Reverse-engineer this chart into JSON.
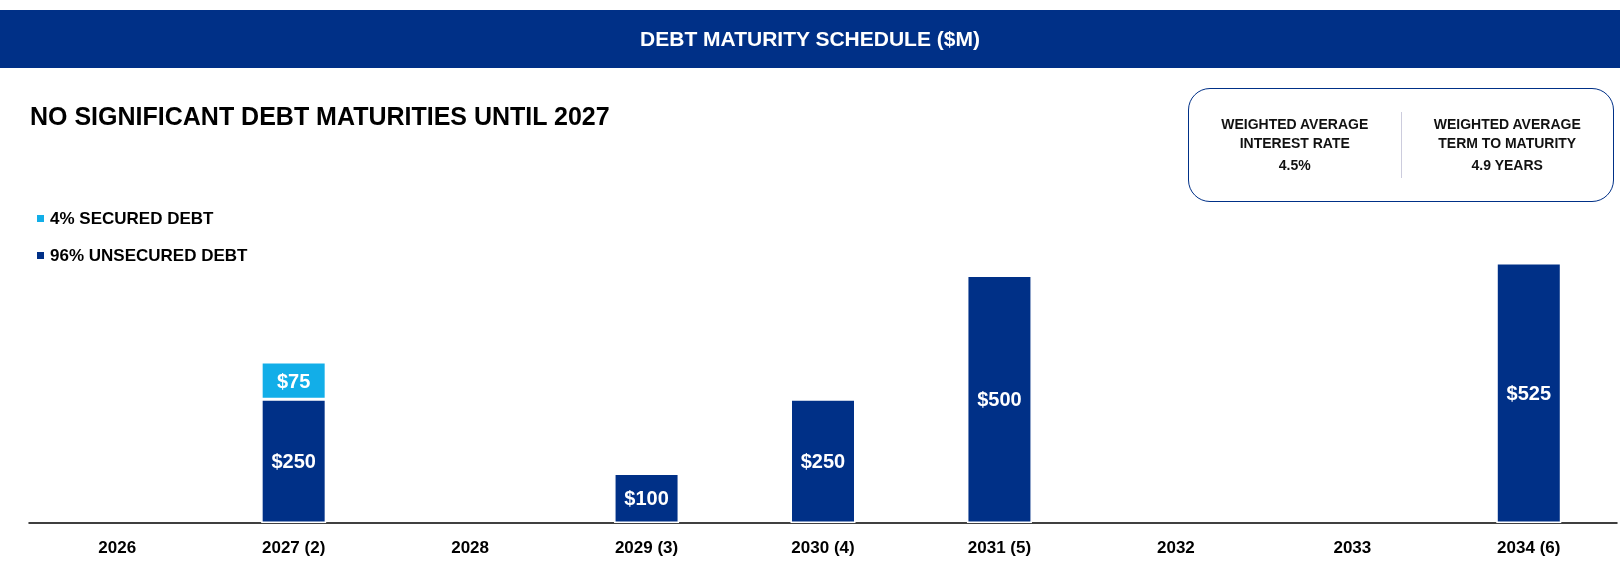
{
  "chart_data": {
    "type": "bar",
    "title": "DEBT MATURITY SCHEDULE ($M)",
    "subtitle": "NO SIGNIFICANT DEBT MATURITIES UNTIL 2027",
    "annotations": [
      "WEIGHTED AVERAGE INTEREST RATE",
      "4.5%",
      "WEIGHTED AVERAGE TERM TO MATURITY",
      "4.9 YEARS"
    ],
    "categories": [
      "2026",
      "2027 (2)",
      "2028",
      "2029 (3)",
      "2030 (4)",
      "2031 (5)",
      "2032",
      "2033",
      "2034 (6)"
    ],
    "stacked": true,
    "legend": "top left",
    "series": [
      {
        "name": "96% UNSECURED DEBT",
        "color": "#003087",
        "values": [
          null,
          250,
          null,
          100,
          250,
          500,
          null,
          null,
          525
        ],
        "value_labels": [
          null,
          "$250",
          null,
          "$100",
          "$250",
          "$500",
          null,
          null,
          "$525"
        ]
      },
      {
        "name": "4% SECURED DEBT",
        "color": "#12aee8",
        "values": [
          null,
          75,
          null,
          null,
          null,
          null,
          null,
          null,
          null
        ],
        "value_labels": [
          null,
          "$75",
          null,
          null,
          null,
          null,
          null,
          null,
          null
        ]
      }
    ]
  }
}
